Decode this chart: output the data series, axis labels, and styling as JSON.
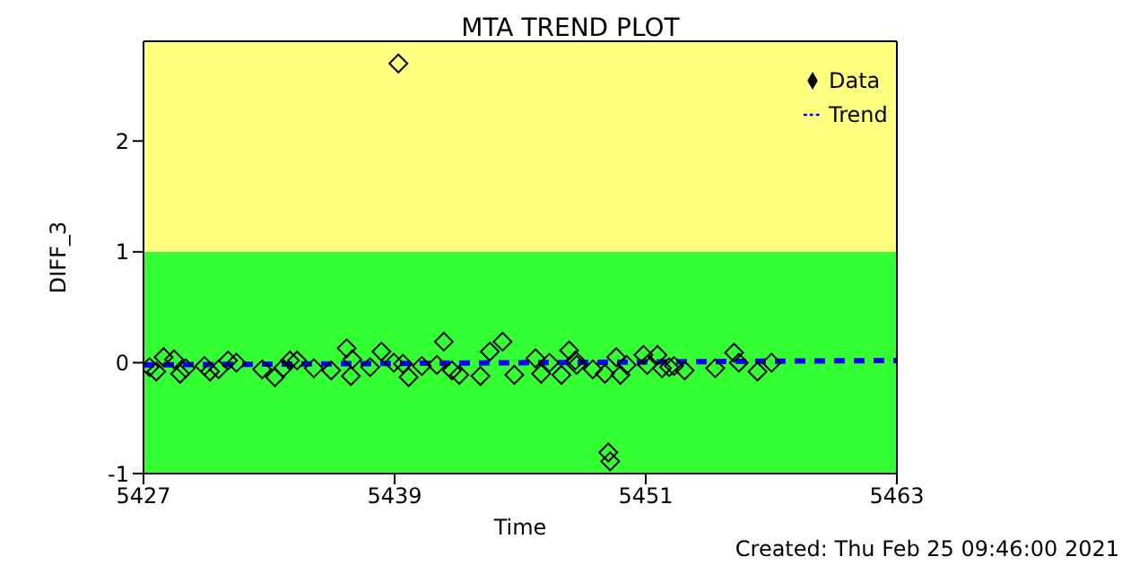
{
  "chart_data": {
    "type": "scatter",
    "title": "MTA TREND PLOT",
    "xlabel": "Time",
    "ylabel": "DIFF_3",
    "annotations": [
      "Created: Thu Feb 25 09:46:00 2021"
    ],
    "series": [
      {
        "name": "Data",
        "color": "#000000",
        "marker": "diamond",
        "x": [
          5427.29,
          5427.61,
          5427.96,
          5428.46,
          5428.75,
          5429.02,
          5429.91,
          5430.18,
          5430.59,
          5431.04,
          5431.44,
          5432.67,
          5433.28,
          5433.66,
          5434.0,
          5434.34,
          5435.14,
          5435.97,
          5436.71,
          5436.98,
          5436.91,
          5437.83,
          5438.37,
          5438.96,
          5439.18,
          5439.4,
          5439.67,
          5440.3,
          5441.02,
          5441.35,
          5441.74,
          5442.09,
          5443.1,
          5443.55,
          5444.16,
          5444.72,
          5445.73,
          5446.0,
          5446.4,
          5446.97,
          5447.34,
          5447.64,
          5447.7,
          5448.47,
          5449.05,
          5449.21,
          5449.3,
          5449.59,
          5449.79,
          5450.09,
          5450.89,
          5451.07,
          5451.56,
          5451.78,
          5452.12,
          5452.35,
          5452.86,
          5454.32,
          5455.22,
          5455.45,
          5456.34,
          5457.01
        ],
        "values": [
          -0.04,
          -0.08,
          0.05,
          0.03,
          -0.1,
          -0.05,
          -0.03,
          -0.08,
          -0.06,
          0.02,
          0.0,
          -0.06,
          -0.13,
          -0.05,
          0.02,
          0.02,
          -0.05,
          -0.07,
          0.13,
          0.03,
          -0.12,
          -0.04,
          0.1,
          0.0,
          2.7,
          -0.01,
          -0.13,
          -0.03,
          -0.02,
          0.19,
          -0.07,
          -0.11,
          -0.12,
          0.1,
          0.19,
          -0.11,
          0.04,
          -0.1,
          0.0,
          -0.11,
          0.11,
          0.02,
          -0.02,
          -0.06,
          -0.1,
          -0.81,
          -0.89,
          0.05,
          -0.11,
          -0.02,
          0.07,
          -0.02,
          0.07,
          -0.05,
          -0.04,
          -0.03,
          -0.07,
          -0.05,
          0.09,
          0.0,
          -0.08,
          0.0
        ]
      },
      {
        "name": "Trend",
        "type": "line",
        "color": "#0000ff",
        "line_style": "dashed",
        "x": [
          5427,
          5463
        ],
        "values": [
          -0.02,
          0.02
        ]
      }
    ],
    "bands": [
      {
        "axis": "y",
        "from": -1,
        "to": 1,
        "color": "#33ff33"
      },
      {
        "axis": "y",
        "from": 1,
        "to": 2.9,
        "color": "#ffff80"
      }
    ],
    "xlim": [
      5427,
      5463
    ],
    "xticks": [
      5427,
      5439,
      5451,
      5463
    ],
    "ylim": [
      -1,
      2.9
    ],
    "yticks": [
      -1,
      0,
      1,
      2
    ],
    "legend": "top right"
  }
}
